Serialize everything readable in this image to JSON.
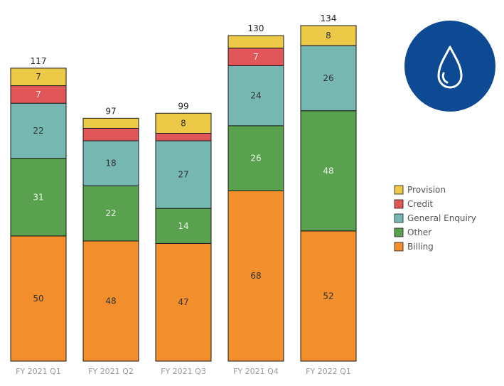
{
  "chart_data": {
    "type": "bar",
    "stacked": true,
    "categories": [
      "FY 2021 Q1",
      "FY 2021 Q2",
      "FY 2021 Q3",
      "FY 2021 Q4",
      "FY 2022 Q1"
    ],
    "totals": [
      "117",
      "97",
      "99",
      "130",
      "134"
    ],
    "series": [
      {
        "name": "Billing",
        "color": "#f28e2b",
        "label_color": "#333333",
        "values": [
          50,
          48,
          47,
          68,
          52
        ],
        "labels": [
          "50",
          "48",
          "47",
          "68",
          "52"
        ]
      },
      {
        "name": "Other",
        "color": "#59a14f",
        "label_color": "#e8f3e6",
        "values": [
          31,
          22,
          14,
          26,
          48
        ],
        "labels": [
          "31",
          "22",
          "14",
          "26",
          "48"
        ]
      },
      {
        "name": "General Enquiry",
        "color": "#76b7b2",
        "label_color": "#333333",
        "values": [
          22,
          18,
          27,
          24,
          26
        ],
        "labels": [
          "22",
          "18",
          "27",
          "24",
          "26"
        ]
      },
      {
        "name": "Credit",
        "color": "#e15759",
        "label_color": "#fbe3e3",
        "values": [
          7,
          5,
          3,
          7,
          0
        ],
        "labels": [
          "7",
          "",
          "",
          "7",
          ""
        ]
      },
      {
        "name": "Provision",
        "color": "#edc948",
        "label_color": "#333333",
        "values": [
          7,
          4,
          8,
          5,
          8
        ],
        "labels": [
          "7",
          "",
          "8",
          "",
          "8"
        ]
      }
    ],
    "legend_order": [
      "Provision",
      "Credit",
      "General Enquiry",
      "Other",
      "Billing"
    ],
    "legend_position": "right",
    "ylim": [
      0,
      134
    ],
    "grid": false,
    "title": "",
    "xlabel": "",
    "ylabel": ""
  },
  "logo": {
    "icon": "water-drop-icon",
    "bg_color": "#0d4a93",
    "fg_color": "#ffffff"
  }
}
